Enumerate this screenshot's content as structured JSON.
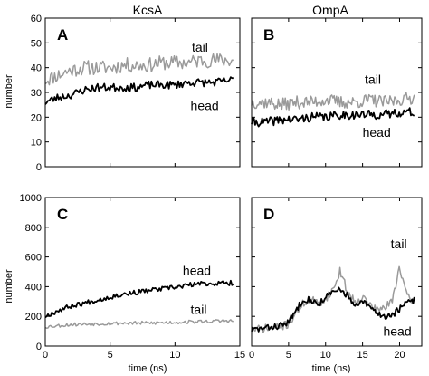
{
  "columns": [
    "KcsA",
    "OmpA"
  ],
  "colors": {
    "head": "#000000",
    "tail": "#9a9a9a"
  },
  "chart_data": [
    {
      "id": "A",
      "type": "line",
      "letter": "A",
      "ylabel": "number",
      "xlabel": "",
      "xlim": [
        0,
        15
      ],
      "ylim": [
        0,
        60
      ],
      "xticks": [
        0,
        5,
        10,
        15
      ],
      "yticks": [
        0,
        10,
        20,
        30,
        40,
        50,
        60
      ],
      "show_xtick_labels": false,
      "show_ytick_labels": true,
      "annotations": [
        {
          "text": "tail",
          "x": 11.3,
          "y": 46.5
        },
        {
          "text": "head",
          "x": 11.2,
          "y": 22.8
        }
      ],
      "series": [
        {
          "name": "tail",
          "color": "tail",
          "noise": 3.0,
          "seed": 11,
          "x": [
            0,
            1,
            2,
            3,
            4,
            5,
            6,
            7,
            8,
            9,
            10,
            11,
            12,
            13,
            14.5
          ],
          "y": [
            35,
            37,
            39,
            40,
            40,
            40,
            41,
            41,
            41,
            42,
            42,
            42,
            43,
            43,
            43
          ]
        },
        {
          "name": "head",
          "color": "head",
          "noise": 1.6,
          "seed": 23,
          "x": [
            0,
            1,
            2,
            3,
            4,
            5,
            6,
            7,
            8,
            9,
            10,
            11,
            12,
            13,
            14.5
          ],
          "y": [
            26,
            28,
            29,
            31,
            32,
            32,
            32,
            32,
            33,
            33,
            33,
            34,
            34,
            34,
            35
          ]
        }
      ]
    },
    {
      "id": "B",
      "type": "line",
      "letter": "B",
      "ylabel": "",
      "xlabel": "",
      "xlim": [
        0,
        23
      ],
      "ylim": [
        0,
        60
      ],
      "xticks": [
        0,
        5,
        10,
        15,
        20
      ],
      "yticks": [
        0,
        10,
        20,
        30,
        40,
        50,
        60
      ],
      "show_xtick_labels": false,
      "show_ytick_labels": false,
      "annotations": [
        {
          "text": "tail",
          "x": 15.3,
          "y": 33.5
        },
        {
          "text": "head",
          "x": 15.0,
          "y": 12.0
        }
      ],
      "series": [
        {
          "name": "tail",
          "color": "tail",
          "noise": 2.6,
          "seed": 37,
          "x": [
            0,
            2,
            4,
            6,
            8,
            10,
            12,
            14,
            16,
            18,
            20,
            22
          ],
          "y": [
            26,
            26,
            25,
            26,
            26,
            27,
            26,
            26,
            27,
            26,
            27,
            28
          ]
        },
        {
          "name": "head",
          "color": "head",
          "noise": 1.8,
          "seed": 41,
          "x": [
            0,
            2,
            4,
            6,
            8,
            10,
            12,
            14,
            16,
            18,
            20,
            22
          ],
          "y": [
            18,
            18,
            19,
            19,
            20,
            20,
            21,
            21,
            21,
            21,
            22,
            22
          ]
        }
      ]
    },
    {
      "id": "C",
      "type": "line",
      "letter": "C",
      "ylabel": "number",
      "xlabel": "time (ns)",
      "xlim": [
        0,
        15
      ],
      "ylim": [
        0,
        1000
      ],
      "xticks": [
        0,
        5,
        10,
        15
      ],
      "yticks": [
        0,
        200,
        400,
        600,
        800,
        1000
      ],
      "show_xtick_labels": true,
      "show_ytick_labels": true,
      "annotations": [
        {
          "text": "head",
          "x": 10.6,
          "y": 480
        },
        {
          "text": "tail",
          "x": 11.2,
          "y": 215
        }
      ],
      "series": [
        {
          "name": "tail",
          "color": "tail",
          "noise": 12,
          "seed": 53,
          "x": [
            0,
            2,
            4,
            6,
            8,
            10,
            12,
            14.5
          ],
          "y": [
            130,
            145,
            150,
            155,
            155,
            160,
            165,
            170
          ]
        },
        {
          "name": "head",
          "color": "head",
          "noise": 16,
          "seed": 67,
          "x": [
            0,
            1,
            2,
            3,
            4,
            5,
            6,
            7,
            8,
            9,
            10,
            11,
            12,
            13,
            14.5
          ],
          "y": [
            200,
            240,
            270,
            290,
            310,
            330,
            350,
            360,
            375,
            385,
            395,
            410,
            420,
            420,
            425
          ]
        }
      ]
    },
    {
      "id": "D",
      "type": "line",
      "letter": "D",
      "ylabel": "",
      "xlabel": "time (ns)",
      "xlim": [
        0,
        23
      ],
      "ylim": [
        0,
        1000
      ],
      "xticks": [
        0,
        5,
        10,
        15,
        20
      ],
      "yticks": [
        0,
        200,
        400,
        600,
        800,
        1000
      ],
      "show_xtick_labels": true,
      "show_ytick_labels": false,
      "annotations": [
        {
          "text": "tail",
          "x": 18.8,
          "y": 660
        },
        {
          "text": "head",
          "x": 17.8,
          "y": 70
        }
      ],
      "series": [
        {
          "name": "tail",
          "color": "tail",
          "noise": 28,
          "seed": 71,
          "x": [
            0,
            2,
            4,
            5,
            6,
            7,
            8,
            9,
            10,
            11,
            11.5,
            12,
            12.5,
            13,
            14,
            15,
            16,
            17,
            18,
            19,
            19.5,
            20,
            21,
            22
          ],
          "y": [
            110,
            120,
            130,
            150,
            220,
            290,
            320,
            280,
            320,
            380,
            440,
            510,
            430,
            360,
            300,
            330,
            280,
            240,
            260,
            300,
            420,
            540,
            330,
            300
          ]
        },
        {
          "name": "head",
          "color": "head",
          "noise": 22,
          "seed": 83,
          "x": [
            0,
            2,
            4,
            5,
            6,
            7,
            8,
            9,
            10,
            11,
            12,
            13,
            14,
            15,
            16,
            17,
            18,
            19,
            20,
            21,
            22
          ],
          "y": [
            110,
            120,
            140,
            160,
            240,
            320,
            310,
            280,
            330,
            360,
            380,
            340,
            260,
            300,
            260,
            220,
            200,
            210,
            250,
            290,
            310
          ]
        }
      ]
    }
  ]
}
